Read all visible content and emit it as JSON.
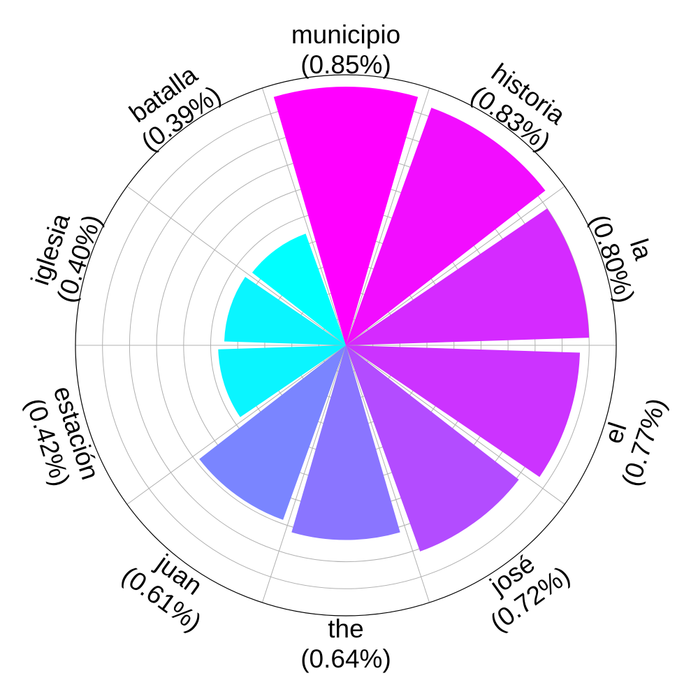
{
  "chart_data": {
    "type": "polar-bar",
    "title": "",
    "grid": true,
    "categories": [
      "municipio",
      "historia",
      "la",
      "el",
      "josé",
      "the",
      "juan",
      "estación",
      "iglesia",
      "batalla"
    ],
    "values": [
      0.85,
      0.83,
      0.8,
      0.77,
      0.72,
      0.64,
      0.61,
      0.42,
      0.4,
      0.39
    ],
    "value_labels": [
      "(0.85%)",
      "(0.83%)",
      "(0.80%)",
      "(0.77%)",
      "(0.72%)",
      "(0.64%)",
      "(0.61%)",
      "(0.42%)",
      "(0.40%)",
      "(0.39%)"
    ],
    "colors": [
      "#ff00ff",
      "#f20dff",
      "#d52aff",
      "#cc33ff",
      "#b34cff",
      "#8a75ff",
      "#7a85ff",
      "#0af5ff",
      "#0af5ff",
      "#00ffff"
    ],
    "rlim": [
      0,
      0.85
    ]
  }
}
